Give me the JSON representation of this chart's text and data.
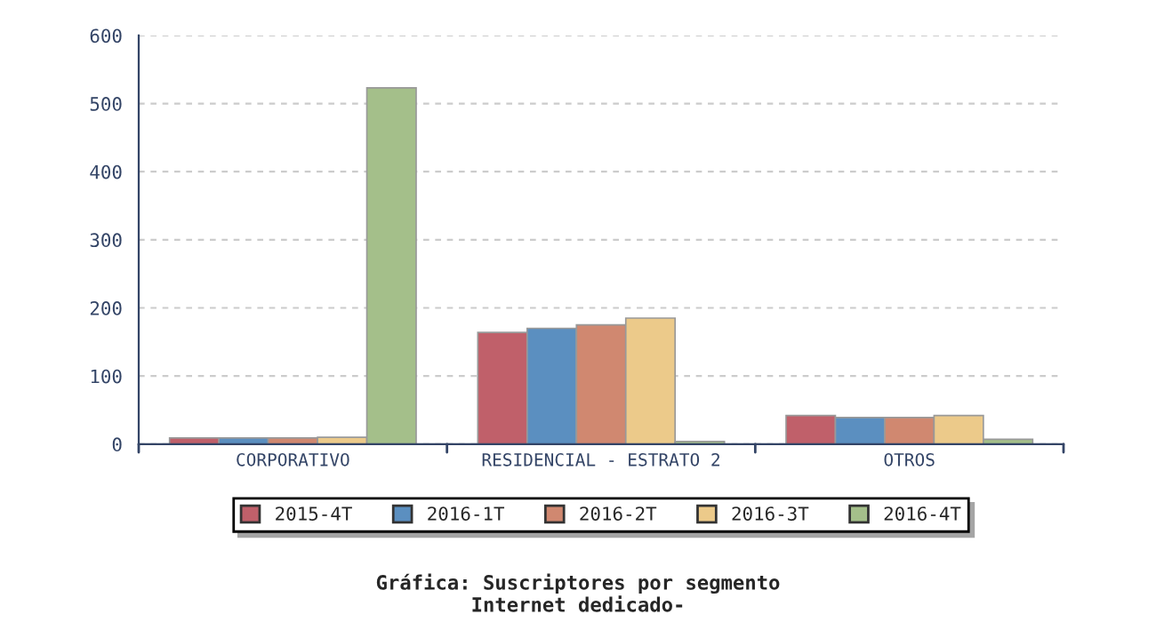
{
  "chart_data": {
    "type": "bar",
    "title": "Gráfica: Suscriptores por segmento\nInternet dedicado-",
    "categories": [
      "CORPORATIVO",
      "RESIDENCIAL - ESTRATO 2",
      "OTROS"
    ],
    "series": [
      {
        "name": "2015-4T",
        "color": "#c0606a",
        "values": [
          9,
          164,
          42
        ]
      },
      {
        "name": "2016-1T",
        "color": "#5b8fc0",
        "values": [
          9,
          170,
          39
        ]
      },
      {
        "name": "2016-2T",
        "color": "#d08870",
        "values": [
          9,
          175,
          39
        ]
      },
      {
        "name": "2016-3T",
        "color": "#ecca8a",
        "values": [
          10,
          185,
          42
        ]
      },
      {
        "name": "2016-4T",
        "color": "#a4bf8a",
        "values": [
          523,
          4,
          7
        ]
      }
    ],
    "ylim": [
      0,
      600
    ],
    "yticks": [
      0,
      100,
      200,
      300,
      400,
      500,
      600
    ],
    "grid": "y",
    "legend": "bottom"
  }
}
